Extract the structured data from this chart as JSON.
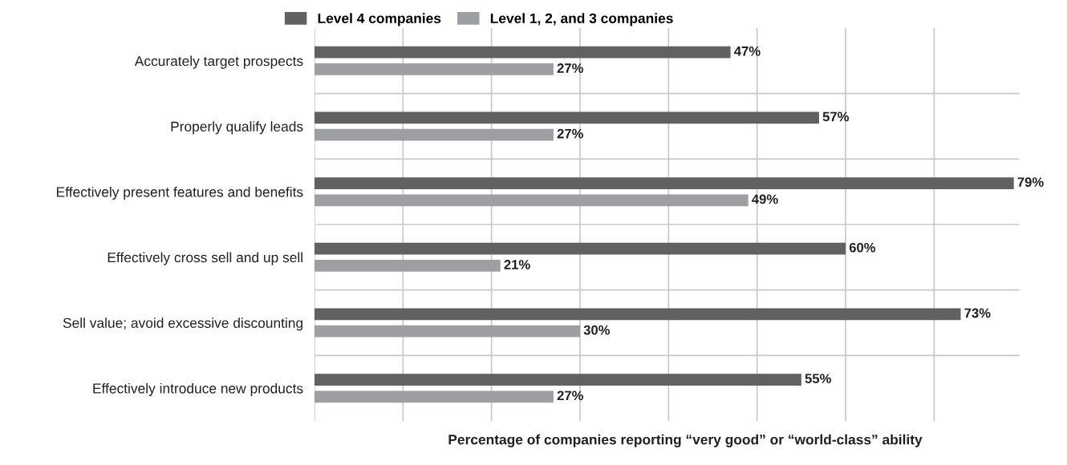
{
  "chart_data": {
    "type": "bar",
    "orientation": "horizontal",
    "categories": [
      "Accurately target prospects",
      "Properly qualify leads",
      "Effectively present features and benefits",
      "Effectively cross sell and up sell",
      "Sell value; avoid excessive discounting",
      "Effectively introduce new products"
    ],
    "series": [
      {
        "name": "Level 4 companies",
        "color": "#606163",
        "values": [
          47,
          57,
          79,
          60,
          73,
          55
        ],
        "value_labels": [
          "47%",
          "57%",
          "79%",
          "60%",
          "73%",
          "55%"
        ]
      },
      {
        "name": "Level 1, 2, and 3 companies",
        "color": "#9d9fa2",
        "values": [
          27,
          27,
          49,
          21,
          30,
          27
        ],
        "value_labels": [
          "27%",
          "27%",
          "49%",
          "21%",
          "30%",
          "27%"
        ]
      }
    ],
    "xlabel": "Percentage of companies reporting “very good” or “world-class” ability",
    "xticks": [
      {
        "value": 10,
        "label": null
      },
      {
        "value": 20,
        "label": null
      },
      {
        "value": 30,
        "label": null
      },
      {
        "value": 40,
        "label": null
      },
      {
        "value": 50,
        "label": null
      },
      {
        "value": 60,
        "label": null
      },
      {
        "value": 70,
        "label": null
      }
    ],
    "tick_labels": "y",
    "grid": true,
    "legend": "top left"
  }
}
